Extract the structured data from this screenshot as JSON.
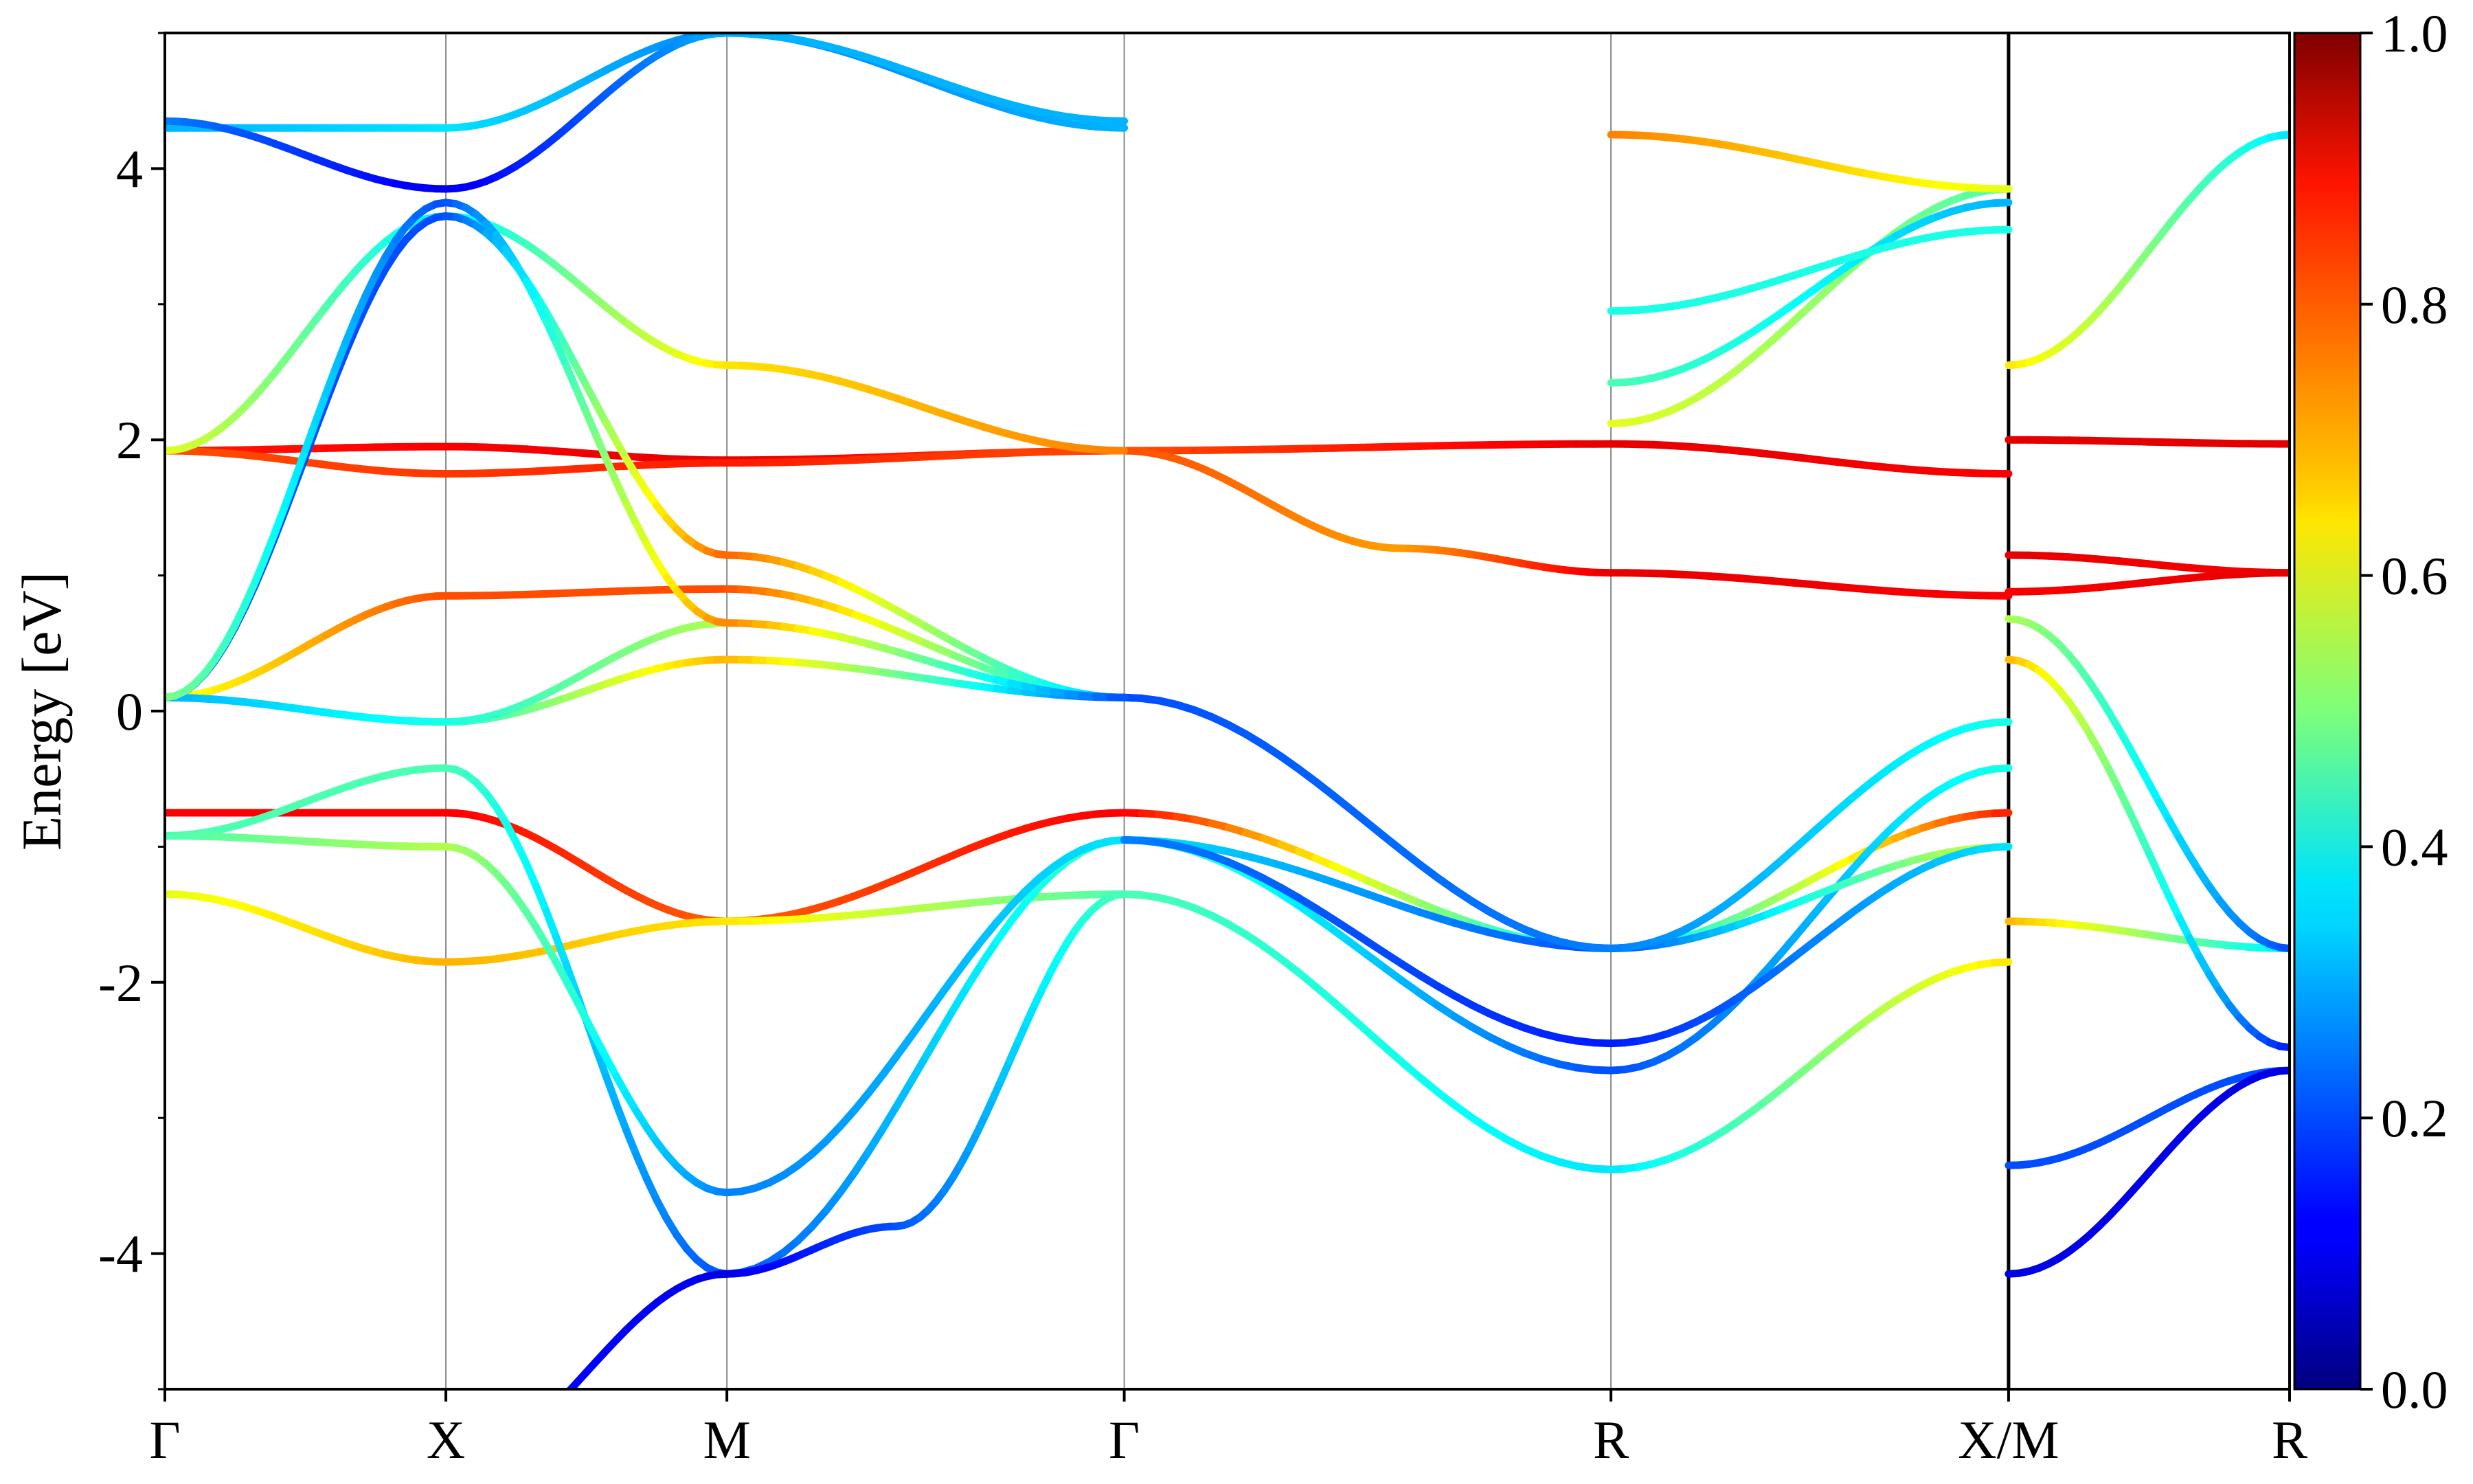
{
  "chart_data": {
    "type": "line",
    "subtype": "band-structure-with-color-projection",
    "title": "",
    "xlabel": "",
    "ylabel": "Energy [eV]",
    "ylim": [
      -5,
      5
    ],
    "y_ticks": [
      "-4",
      "-2",
      "0",
      "2",
      "4"
    ],
    "y_tick_values": [
      -4,
      -2,
      0,
      2,
      4
    ],
    "x_ticks": [
      "Γ",
      "X",
      "M",
      "Γ",
      "R",
      "X/M",
      "R"
    ],
    "x_tick_values": [
      0,
      1,
      2,
      3.414,
      5.146,
      6.561,
      7.561
    ],
    "xlim": [
      0,
      7.561
    ],
    "grid": "vertical lines at high-symmetry points",
    "colormap": "jet",
    "colorbar": {
      "range": [
        0,
        1
      ],
      "ticks": [
        "0.0",
        "0.2",
        "0.4",
        "0.6",
        "0.8",
        "1.0"
      ],
      "tick_values": [
        0,
        0.2,
        0.4,
        0.6,
        0.8,
        1.0
      ]
    },
    "bands": [
      {
        "x": [
          0,
          1,
          2,
          3.414,
          5.146,
          6.561
        ],
        "y": [
          1.92,
          1.95,
          1.85,
          1.92,
          1.97,
          1.75
        ],
        "c": [
          0.85,
          0.88,
          0.9,
          0.8,
          0.9,
          0.88
        ]
      },
      {
        "x": [
          6.561,
          7.561
        ],
        "y": [
          2.0,
          1.97
        ],
        "c": [
          0.9,
          0.9
        ]
      },
      {
        "x": [
          0,
          1,
          2,
          3.414,
          4.4,
          5.146,
          6.561
        ],
        "y": [
          1.92,
          1.75,
          1.83,
          1.92,
          1.2,
          1.02,
          0.85
        ],
        "c": [
          0.8,
          0.82,
          0.85,
          0.8,
          0.72,
          0.9,
          0.88
        ]
      },
      {
        "x": [
          6.561,
          7.561
        ],
        "y": [
          1.15,
          1.02
        ],
        "c": [
          0.9,
          0.88
        ]
      },
      {
        "x": [
          0,
          1,
          2,
          3.414
        ],
        "y": [
          0.1,
          0.85,
          0.9,
          0.1
        ],
        "c": [
          0.6,
          0.8,
          0.8,
          0.3
        ]
      },
      {
        "x": [
          6.561,
          7.561
        ],
        "y": [
          0.88,
          1.02
        ],
        "c": [
          0.88,
          0.9
        ]
      },
      {
        "x": [
          0,
          1,
          2,
          3.414,
          5.146,
          6.561
        ],
        "y": [
          -0.75,
          -0.75,
          -1.55,
          -0.75,
          -1.75,
          -0.75
        ],
        "c": [
          0.88,
          0.88,
          0.78,
          0.88,
          0.3,
          0.85
        ]
      },
      {
        "x": [
          0,
          1,
          2,
          3.414,
          5.146,
          6.561
        ],
        "y": [
          -1.35,
          -1.85,
          -1.55,
          -1.35,
          -3.38,
          -1.85
        ],
        "c": [
          0.6,
          0.7,
          0.65,
          0.45,
          0.35,
          0.65
        ]
      },
      {
        "x": [
          6.561,
          7.561
        ],
        "y": [
          -1.55,
          -1.75
        ],
        "c": [
          0.7,
          0.35
        ]
      },
      {
        "x": [
          0,
          1,
          2,
          3.414,
          5.146,
          6.561
        ],
        "y": [
          -0.92,
          -0.42,
          -4.15,
          -0.95,
          -2.65,
          -0.42
        ],
        "c": [
          0.45,
          0.45,
          0.2,
          0.45,
          0.2,
          0.4
        ]
      },
      {
        "x": [
          0,
          1,
          2,
          3.414,
          5.146,
          6.561
        ],
        "y": [
          -0.92,
          -1.0,
          -3.55,
          -0.95,
          -1.75,
          -1.0
        ],
        "c": [
          0.45,
          0.55,
          0.25,
          0.35,
          0.2,
          0.6
        ]
      },
      {
        "x": [
          0,
          1,
          2,
          3.414,
          5.146,
          6.561
        ],
        "y": [
          0.1,
          -0.08,
          0.38,
          0.1,
          -1.75,
          -0.08
        ],
        "c": [
          0.3,
          0.4,
          0.7,
          0.2,
          0.15,
          0.4
        ]
      },
      {
        "x": [
          0,
          1,
          2,
          3.414,
          5.146,
          6.561
        ],
        "y": [
          0.1,
          -0.08,
          0.65,
          0.1,
          -1.75,
          -0.08
        ],
        "c": [
          0.3,
          0.4,
          0.55,
          0.2,
          0.25,
          0.4
        ]
      },
      {
        "x": [
          6.561,
          7.561
        ],
        "y": [
          0.68,
          -1.75
        ],
        "c": [
          0.55,
          0.2
        ]
      },
      {
        "x": [
          6.561,
          7.561
        ],
        "y": [
          0.38,
          -2.48
        ],
        "c": [
          0.7,
          0.15
        ]
      },
      {
        "x": [
          0,
          1,
          2,
          3.414
        ],
        "y": [
          1.92,
          3.65,
          2.55,
          1.92
        ],
        "c": [
          0.6,
          0.35,
          0.65,
          0.75
        ]
      },
      {
        "x": [
          0,
          1,
          2,
          3.414
        ],
        "y": [
          0.1,
          3.65,
          1.15,
          0.1
        ],
        "c": [
          0.2,
          0.2,
          0.78,
          0.3
        ]
      },
      {
        "x": [
          0,
          1,
          2,
          3.414
        ],
        "y": [
          0.1,
          3.75,
          0.65,
          0.1
        ],
        "c": [
          0.5,
          0.2,
          0.75,
          0.2
        ]
      },
      {
        "x": [
          0,
          1,
          2,
          2.6,
          3.414
        ],
        "y": [
          -5.5,
          -5.6,
          -4.15,
          -3.8,
          -1.35
        ],
        "c": [
          0.2,
          0.15,
          0.1,
          0.2,
          0.45
        ]
      },
      {
        "x": [
          0,
          1,
          2,
          3.414
        ],
        "y": [
          4.3,
          4.3,
          5.0,
          4.3
        ],
        "c": [
          0.3,
          0.35,
          0.25,
          0.3
        ]
      },
      {
        "x": [
          0,
          1,
          2,
          3.414
        ],
        "y": [
          4.35,
          3.85,
          5.0,
          4.35
        ],
        "c": [
          0.25,
          0.1,
          0.3,
          0.3
        ]
      },
      {
        "x": [
          5.146,
          6.561
        ],
        "y": [
          2.12,
          3.85
        ],
        "c": [
          0.6,
          0.45
        ]
      },
      {
        "x": [
          5.146,
          6.561
        ],
        "y": [
          2.42,
          3.75
        ],
        "c": [
          0.45,
          0.3
        ]
      },
      {
        "x": [
          5.146,
          6.561
        ],
        "y": [
          2.95,
          3.55
        ],
        "c": [
          0.4,
          0.4
        ]
      },
      {
        "x": [
          5.146,
          6.561
        ],
        "y": [
          4.25,
          3.85
        ],
        "c": [
          0.75,
          0.6
        ]
      },
      {
        "x": [
          3.414,
          5.146,
          6.561
        ],
        "y": [
          -0.95,
          -2.45,
          -1.0
        ],
        "c": [
          0.25,
          0.15,
          0.35
        ]
      },
      {
        "x": [
          6.561,
          7.561
        ],
        "y": [
          -3.35,
          -2.65
        ],
        "c": [
          0.2,
          0.2
        ]
      },
      {
        "x": [
          6.561,
          7.561
        ],
        "y": [
          -4.15,
          -2.65
        ],
        "c": [
          0.1,
          0.1
        ]
      },
      {
        "x": [
          6.561,
          7.561
        ],
        "y": [
          2.55,
          4.25
        ],
        "c": [
          0.65,
          0.35
        ]
      }
    ]
  }
}
